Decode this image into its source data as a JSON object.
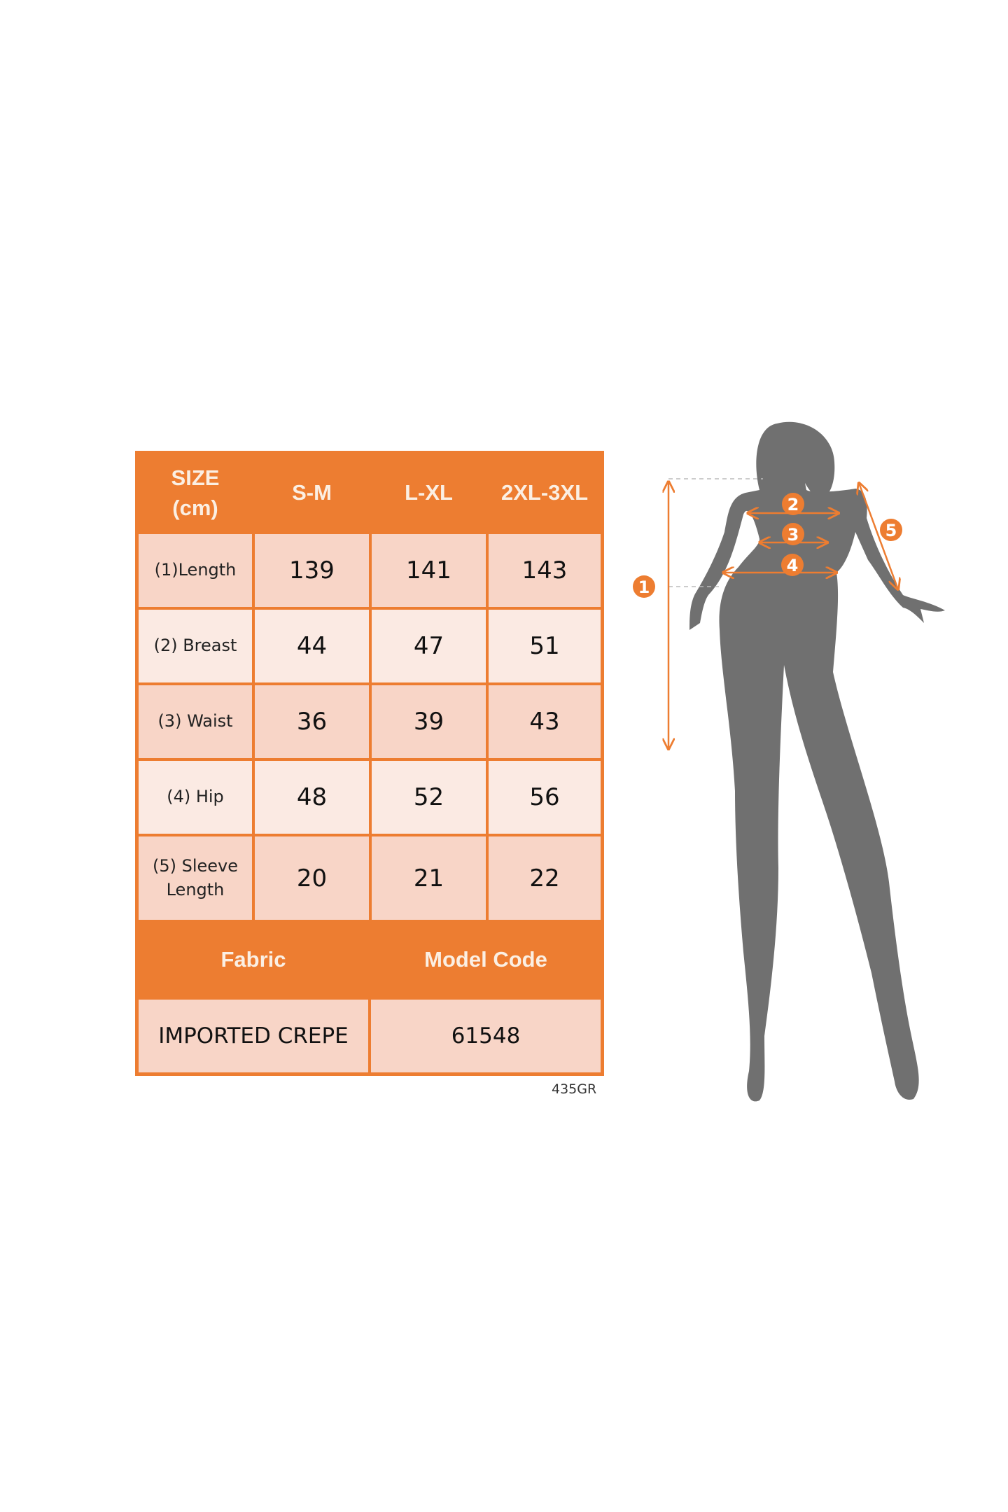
{
  "size_table": {
    "header": [
      "SIZE\n(cm)",
      "S-M",
      "L-XL",
      "2XL-3XL"
    ],
    "header_size_line1": "SIZE",
    "header_size_line2": "(cm)",
    "rows": [
      {
        "label": "(1)Length",
        "values": [
          "139",
          "141",
          "143"
        ]
      },
      {
        "label": "(2) Breast",
        "values": [
          "44",
          "47",
          "51"
        ]
      },
      {
        "label": "(3) Waist",
        "values": [
          "36",
          "39",
          "43"
        ]
      },
      {
        "label": "(4) Hip",
        "values": [
          "48",
          "52",
          "56"
        ]
      },
      {
        "label_line1": "(5) Sleeve",
        "label_line2": "Length",
        "values": [
          "20",
          "21",
          "22"
        ]
      }
    ],
    "fabric_header": "Fabric",
    "model_code_header": "Model Code",
    "fabric_value": "IMPORTED CREPE",
    "model_code_value": "61548"
  },
  "footnote_code": "435GR",
  "figure": {
    "markers": [
      "1",
      "2",
      "3",
      "4",
      "5"
    ]
  },
  "colors": {
    "accent": "#ED7D31",
    "cell_dark": "#F8D5C7",
    "cell_light": "#FBEAE3",
    "silhouette": "#707070"
  }
}
